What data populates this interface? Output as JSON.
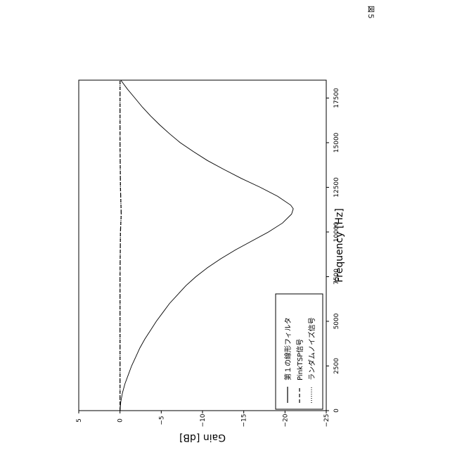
{
  "page": {
    "figure_label": "図５"
  },
  "chart_data": {
    "type": "line",
    "orientation": "rotated-90-clockwise",
    "xlabel": "Frequency [Hz]",
    "ylabel": "Gain [dB]",
    "xlim": [
      0,
      18500
    ],
    "ylim": [
      -25,
      5
    ],
    "xticks": [
      0,
      2500,
      5000,
      7500,
      10000,
      12500,
      15000,
      17500
    ],
    "yticks": [
      5,
      0,
      -5,
      -10,
      -15,
      -20,
      -25
    ],
    "grid": false,
    "legend": {
      "position": "lower-left"
    },
    "series": [
      {
        "name": "第１の線形フィルタ",
        "style": "solid",
        "x": [
          0,
          500,
          1000,
          1500,
          2000,
          2500,
          3000,
          3500,
          4000,
          4500,
          5000,
          5500,
          6000,
          6500,
          7000,
          7500,
          8000,
          8500,
          9000,
          9500,
          10000,
          10500,
          11000,
          11300,
          11500,
          12000,
          12500,
          13000,
          13500,
          14000,
          14500,
          15000,
          15500,
          16000,
          16500,
          17000,
          17500,
          18000,
          18500
        ],
        "y": [
          0,
          -0.1,
          -0.3,
          -0.6,
          -1.0,
          -1.4,
          -1.9,
          -2.4,
          -3.0,
          -3.7,
          -4.4,
          -5.2,
          -6.0,
          -7.0,
          -8.0,
          -9.2,
          -10.6,
          -12.2,
          -14.0,
          -16.0,
          -18.0,
          -19.7,
          -20.8,
          -21.0,
          -20.7,
          -19.1,
          -17.0,
          -14.7,
          -12.6,
          -10.6,
          -8.9,
          -7.3,
          -6.0,
          -4.8,
          -3.7,
          -2.7,
          -1.8,
          -0.9,
          -0.1
        ]
      },
      {
        "name": "PinkTSP信号",
        "style": "dashed",
        "x": [
          0,
          2500,
          5000,
          7500,
          10000,
          11000,
          12500,
          15000,
          17500,
          18500
        ],
        "y": [
          0,
          0,
          0,
          0,
          -0.05,
          -0.15,
          -0.05,
          0,
          0,
          0
        ]
      },
      {
        "name": "ランダムノイズ信号",
        "style": "dotted",
        "x": [
          0,
          2500,
          5000,
          7500,
          10000,
          11000,
          12500,
          15000,
          17500,
          18500
        ],
        "y": [
          0,
          0,
          0,
          0,
          -0.05,
          -0.15,
          -0.05,
          0,
          0,
          0
        ]
      }
    ]
  }
}
